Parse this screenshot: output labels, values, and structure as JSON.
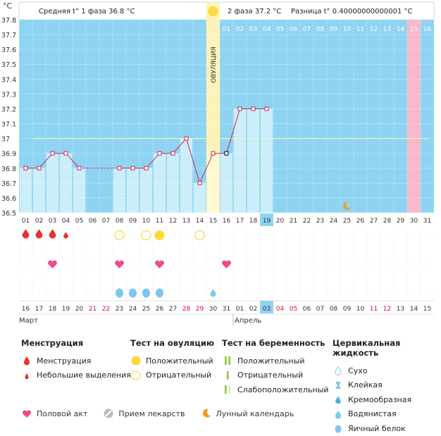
{
  "chart_data": {
    "type": "line",
    "unit": "°C",
    "y_ticks": [
      "37.8",
      "37.7",
      "37.6",
      "37.5",
      "37.4",
      "37.3",
      "37.2",
      "37.1",
      "37",
      "36.9",
      "36.8",
      "36.7",
      "36.6",
      "36.5"
    ],
    "ylim": [
      36.5,
      37.8
    ],
    "phase1_label": "Средняя t° 1 фаза 36.8 °C",
    "phase2_label": "2 фаза 37.2 °C",
    "diff_label": "Разница t° 0.40000000000001 °C",
    "ovulation_label": "ОВУЛЯЦИЯ",
    "ovulation_day": 15,
    "coverline": 37.0,
    "cycle_days": [
      "01",
      "02",
      "03",
      "04",
      "05",
      "06",
      "07",
      "08",
      "09",
      "10",
      "11",
      "12",
      "13",
      "14",
      "15",
      "16",
      "17",
      "18",
      "19",
      "20",
      "21",
      "22",
      "23",
      "24",
      "25",
      "26",
      "27",
      "28",
      "29",
      "30",
      "31"
    ],
    "top_days": [
      "01",
      "02",
      "03",
      "04",
      "05",
      "06",
      "07",
      "08",
      "09",
      "10",
      "11",
      "12",
      "13",
      "14",
      "15",
      "16"
    ],
    "current_cycle_day": 19,
    "temperatures": [
      36.8,
      36.8,
      36.9,
      36.9,
      36.8,
      null,
      null,
      36.8,
      36.8,
      36.8,
      36.9,
      36.9,
      37.0,
      36.7,
      36.9,
      36.9,
      37.2,
      37.2,
      37.2,
      null,
      null,
      null,
      null,
      null,
      null,
      null,
      null,
      null,
      null,
      null,
      null
    ],
    "month1": "Март",
    "month2": "Апрель",
    "dates": [
      "16",
      "17",
      "18",
      "19",
      "20",
      "21",
      "22",
      "23",
      "24",
      "25",
      "26",
      "27",
      "28",
      "29",
      "30",
      "31",
      "01",
      "02",
      "03",
      "04",
      "05",
      "06",
      "07",
      "08",
      "09",
      "10",
      "11",
      "12",
      "13",
      "14",
      "15"
    ],
    "red_dates": [
      21,
      22,
      28,
      29,
      4,
      5,
      11,
      12
    ],
    "today_index": 18,
    "colors": {
      "plot": "#8ed4f2",
      "line": "#cc2255",
      "bar": "#cceefb",
      "ovulation": "#fbf3b8",
      "pink": "#f7b9cb",
      "blood": "#e8312f",
      "heart": "#ee4a8f",
      "yellow": "#ffd83a",
      "water": "#7cc6ee"
    },
    "events": {
      "menstruation": [
        1,
        2,
        3
      ],
      "spotting": [
        4
      ],
      "ovulation_positive": [
        11
      ],
      "ovulation_negative": [
        8,
        10,
        14
      ],
      "intercourse": [
        3,
        8,
        11,
        16
      ],
      "mucus_egg_white": [
        8,
        9,
        10,
        11
      ],
      "mucus_creamy": [
        15
      ],
      "moon": [
        25
      ]
    }
  },
  "legend": {
    "menstruation": {
      "title": "Менструация",
      "items": [
        "Менструация",
        "Небольшие выделения"
      ]
    },
    "ovulation_test": {
      "title": "Тест на овуляцию",
      "items": [
        "Положительный",
        "Отрицательный"
      ]
    },
    "pregnancy_test": {
      "title": "Тест на беременность",
      "items": [
        "Положительный",
        "Отрицательный",
        "Слабоположительный"
      ]
    },
    "cervical": {
      "title": "Цервикальная жидкость",
      "items": [
        "Сухо",
        "Клейкая",
        "Кремообразная",
        "Водянистая",
        "Яичный белок"
      ]
    },
    "bottom": [
      "Половой акт",
      "Прием лекарств",
      "Лунный календарь"
    ]
  }
}
